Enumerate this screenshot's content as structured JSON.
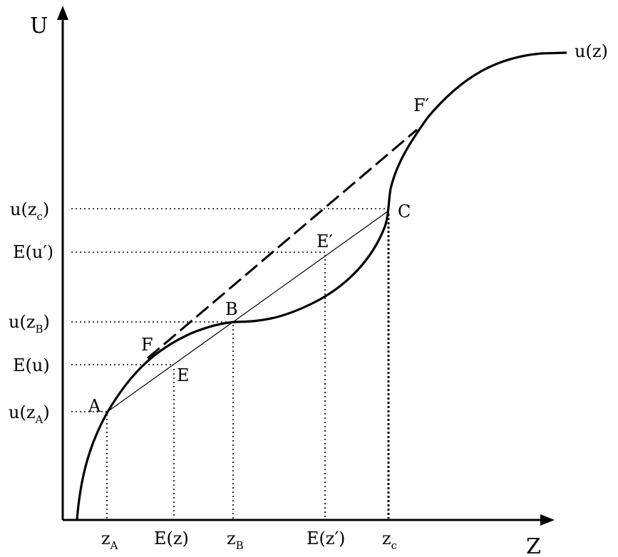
{
  "axes": {
    "y_label": "U",
    "x_label": "Z",
    "curve_label": "u(z)"
  },
  "y_ticks": {
    "u_zc": {
      "base": "u(z",
      "sub": "c",
      "close": ")"
    },
    "e_u_prime": {
      "text": "E(u′)"
    },
    "u_zb": {
      "base": "u(z",
      "sub": "B",
      "close": ")"
    },
    "e_u": {
      "text": "E(u)"
    },
    "u_za": {
      "base": "u(z",
      "sub": "A",
      "close": ")"
    }
  },
  "x_ticks": {
    "z_a": {
      "base": "z",
      "sub": "A"
    },
    "e_z": {
      "text": "E(z)"
    },
    "z_b": {
      "base": "z",
      "sub": "B"
    },
    "e_z_prime": {
      "text": "E(z′)"
    },
    "z_c": {
      "base": "z",
      "sub": "c"
    }
  },
  "points": {
    "a": "A",
    "b": "B",
    "c": "C",
    "e": "E",
    "e_prime": "E′",
    "f": "F",
    "f_prime": "F′"
  }
}
